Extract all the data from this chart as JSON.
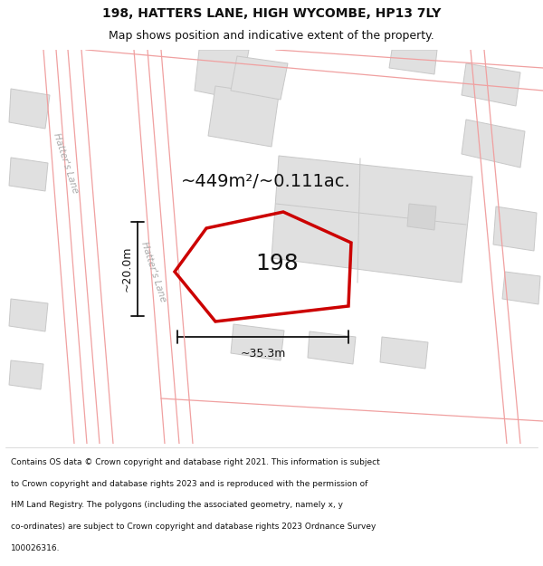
{
  "title": "198, HATTERS LANE, HIGH WYCOMBE, HP13 7LY",
  "subtitle": "Map shows position and indicative extent of the property.",
  "area_label": "~449m²/~0.111ac.",
  "number_label": "198",
  "dim_width_label": "~35.3m",
  "dim_height_label": "~20.0m",
  "bg_color": "#ffffff",
  "building_fill": "#e0e0e0",
  "building_stroke": "#c8c8c8",
  "road_stroke": "#f0a0a0",
  "highlight_stroke": "#cc0000",
  "dim_line_color": "#111111",
  "text_color": "#111111",
  "road_label_color": "#aaaaaa",
  "footer_lines": [
    "Contains OS data © Crown copyright and database right 2021. This information is subject",
    "to Crown copyright and database rights 2023 and is reproduced with the permission of",
    "HM Land Registry. The polygons (including the associated geometry, namely x, y",
    "co-ordinates) are subject to Crown copyright and database rights 2023 Ordnance Survey",
    "100026316."
  ]
}
